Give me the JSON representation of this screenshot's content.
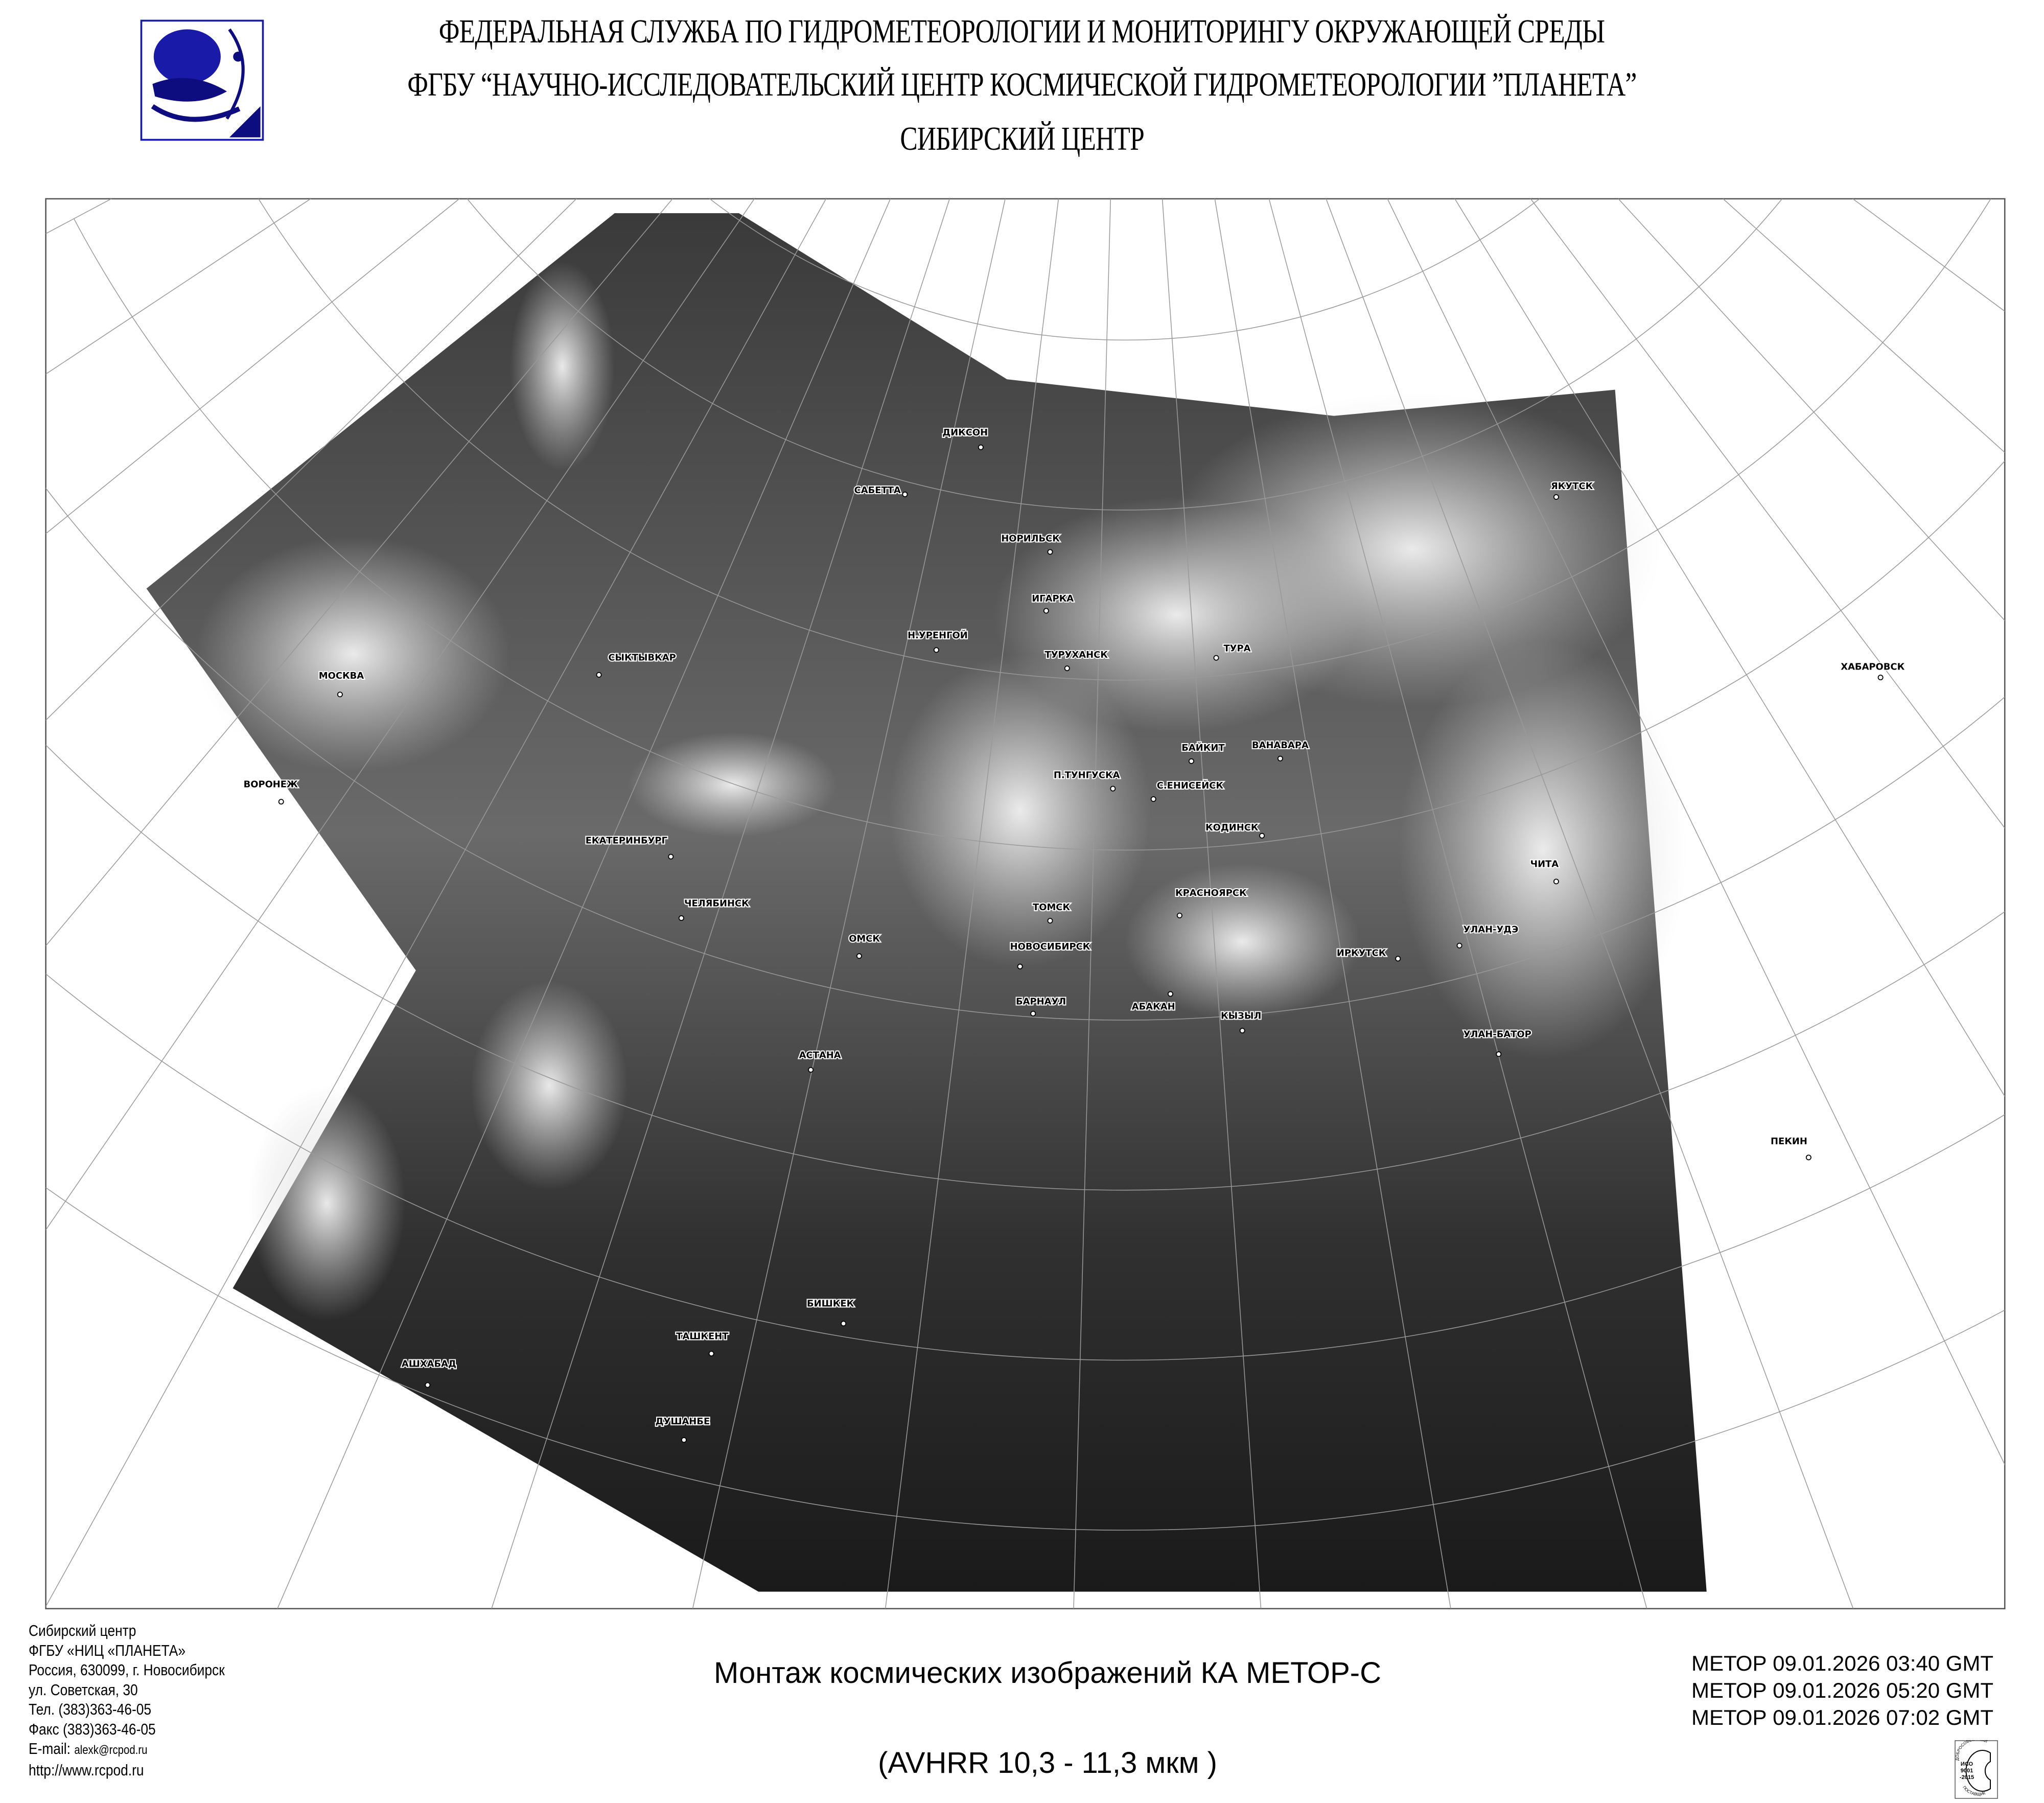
{
  "header": {
    "line1": "ФЕДЕРАЛЬНАЯ СЛУЖБА ПО ГИДРОМЕТЕОРОЛОГИИ И МОНИТОРИНГУ ОКРУЖАЮЩЕЙ СРЕДЫ",
    "line2": "ФГБУ “НАУЧНО-ИССЛЕДОВАТЕЛЬСКИЙ ЦЕНТР КОСМИЧЕСКОЙ ГИДРОМЕТЕОРОЛОГИИ ”ПЛАНЕТА”",
    "line3": "СИБИРСКИЙ  ЦЕНТР",
    "logo_color": "#1a1aa8"
  },
  "map": {
    "cities": [
      {
        "name": "ДИКСОН"
      },
      {
        "name": "САБЕТТА"
      },
      {
        "name": "НОРИЛЬСК"
      },
      {
        "name": "ИГАРКА"
      },
      {
        "name": "Н.УРЕНГОЙ"
      },
      {
        "name": "ТУРУХАНСК"
      },
      {
        "name": "ТУРА"
      },
      {
        "name": "ЯКУТСК"
      },
      {
        "name": "ХАБАРОВСК"
      },
      {
        "name": "МОСКВА"
      },
      {
        "name": "СЫКТЫВКАР"
      },
      {
        "name": "ВОРОНЕЖ"
      },
      {
        "name": "БАЙКИТ"
      },
      {
        "name": "ВАНАВАРА"
      },
      {
        "name": "П.ТУНГУСКА"
      },
      {
        "name": "С.ЕНИСЕЙСК"
      },
      {
        "name": "КОДИНСК"
      },
      {
        "name": "ЕКАТЕРИНБУРГ"
      },
      {
        "name": "ЧЕЛЯБИНСК"
      },
      {
        "name": "ЧИТА"
      },
      {
        "name": "ТОМСК"
      },
      {
        "name": "КРАСНОЯРСК"
      },
      {
        "name": "ОМСК"
      },
      {
        "name": "НОВОСИБИРСК"
      },
      {
        "name": "УЛАН-УДЭ"
      },
      {
        "name": "ИРКУТСК"
      },
      {
        "name": "БАРНАУЛ"
      },
      {
        "name": "АБАКАН"
      },
      {
        "name": "КЫЗЫЛ"
      },
      {
        "name": "УЛАН-БАТОР"
      },
      {
        "name": "АСТАНА"
      },
      {
        "name": "ПЕКИН"
      },
      {
        "name": "БИШКЕК"
      },
      {
        "name": "ТАШКЕНТ"
      },
      {
        "name": "АШХАБАД"
      },
      {
        "name": "ДУШАНБЕ"
      }
    ]
  },
  "footer": {
    "contact": {
      "org": "Сибирский центр",
      "org2": "ФГБУ «НИЦ «ПЛАНЕТА»",
      "address1": "Россия, 630099, г. Новосибирск",
      "address2": "ул. Советская, 30",
      "phone_label": "Тел.",
      "phone": "(383)363-46-05",
      "fax_label": "Факс",
      "fax": "(383)363-46-05",
      "email_label": "E-mail:",
      "email": "alexk@rcpod.ru",
      "website": "http://www.rcpod.ru"
    },
    "title": "Монтаж космических изображений КА МЕТОР-С",
    "subtitle": "(AVHRR 10,3 - 11,3 мкм )",
    "passes": [
      "МЕТОР 09.01.2026 03:40 GMT",
      "МЕТОР 09.01.2026 05:20 GMT",
      "МЕТОР 09.01.2026 07:02 GMT"
    ],
    "iso_badge": {
      "top": "ДОБРОСОВЕСТНЫЙ",
      "center": "ИСО 9001 -2015",
      "bottom": "ПОСТАВЩИК"
    }
  }
}
